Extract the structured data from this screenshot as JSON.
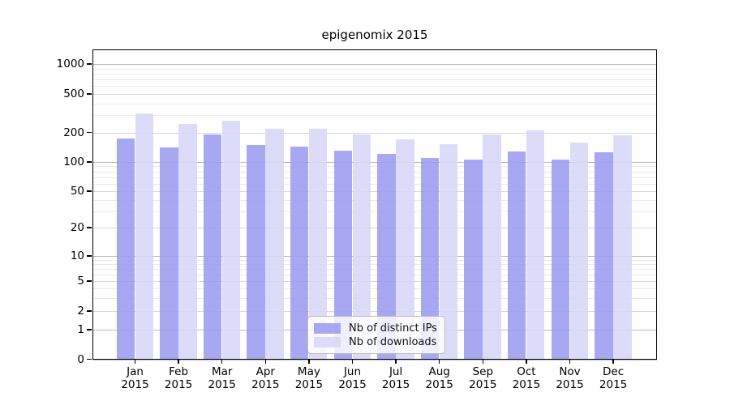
{
  "title": "epigenomix 2015",
  "legend_items": [
    {
      "label": "Nb of distinct IPs",
      "color": "#9c9cf0"
    },
    {
      "label": "Nb of downloads",
      "color": "#d7d7f7"
    }
  ],
  "colors": {
    "background": "#ffffff",
    "axis": "#000000",
    "grid_strong": "#b9b9b9",
    "grid_mid": "#d6d6d6",
    "grid_minor": "#eaeaea",
    "bar_ips": "#9c9cf0",
    "bar_downloads": "#d7d7f7"
  },
  "chart_data": {
    "type": "bar",
    "title": "epigenomix 2015",
    "categories": [
      "Jan 2015",
      "Feb 2015",
      "Mar 2015",
      "Apr 2015",
      "May 2015",
      "Jun 2015",
      "Jul 2015",
      "Aug 2015",
      "Sep 2015",
      "Oct 2015",
      "Nov 2015",
      "Dec 2015"
    ],
    "x_axis": {
      "months": [
        "Jan",
        "Feb",
        "Mar",
        "Apr",
        "May",
        "Jun",
        "Jul",
        "Aug",
        "Sep",
        "Oct",
        "Nov",
        "Dec"
      ],
      "year": "2015"
    },
    "series": [
      {
        "name": "Nb of distinct IPs",
        "color": "#9c9cf0",
        "values": [
          173,
          140,
          190,
          150,
          144,
          131,
          121,
          111,
          106,
          128,
          105,
          126
        ]
      },
      {
        "name": "Nb of downloads",
        "color": "#d7d7f7",
        "values": [
          315,
          246,
          264,
          220,
          217,
          192,
          170,
          151,
          190,
          210,
          159,
          187
        ]
      }
    ],
    "y_axis": {
      "scale": "log-like",
      "tick_values": [
        1000,
        500,
        200,
        100,
        50,
        20,
        10,
        5,
        2,
        1,
        0
      ],
      "tick_labels": [
        "1000",
        "500",
        "200",
        "100",
        "50",
        "20",
        "10",
        "5",
        "2",
        "1",
        "0"
      ]
    },
    "grid": true,
    "legend_position": "inside-bottom-center"
  }
}
